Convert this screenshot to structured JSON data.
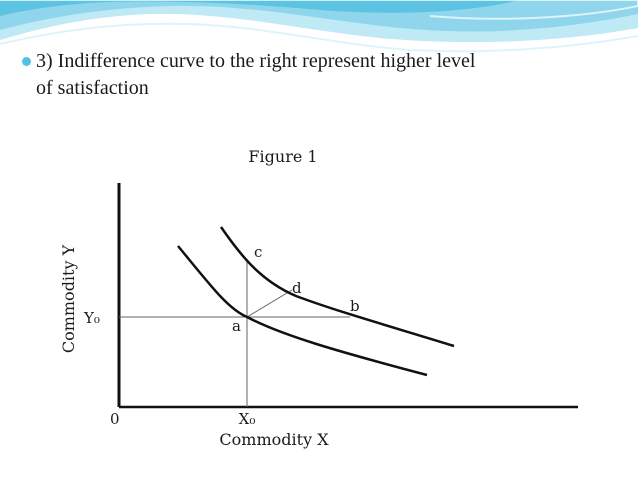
{
  "slide": {
    "bullet_text_line1": "3) Indifference curve to the right represent higher level",
    "bullet_text_line2": "of satisfaction",
    "accent_color": "#4fc3e0"
  },
  "figure": {
    "title": "Figure 1",
    "x_axis_label": "Commodity X",
    "y_axis_label": "Commodity Y",
    "origin_label": "0",
    "x0_label": "X₀",
    "y0_label": "Y₀",
    "point_labels": {
      "a": "a",
      "b": "b",
      "c": "c",
      "d": "d"
    }
  }
}
